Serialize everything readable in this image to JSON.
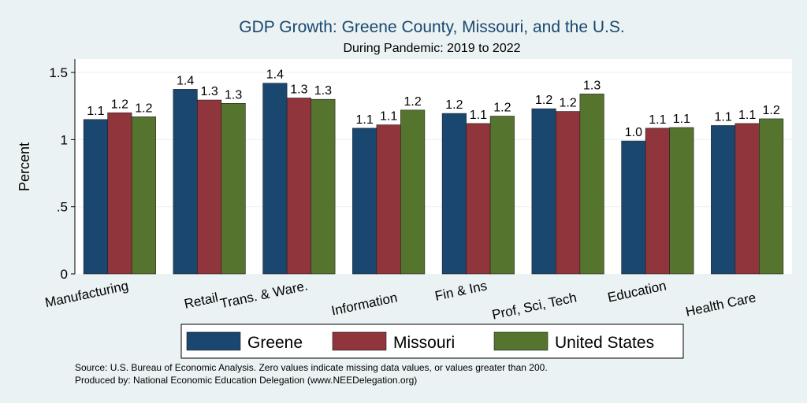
{
  "chart_data": {
    "type": "bar",
    "title": "GDP Growth: Greene County, Missouri, and the U.S.",
    "subtitle": "During Pandemic: 2019 to 2022",
    "ylabel": "Percent",
    "xlabel": "",
    "ylim": [
      0,
      1.6
    ],
    "yticks": [
      0,
      0.5,
      1,
      1.5
    ],
    "ytick_labels": [
      "0",
      ".5",
      "1",
      "1.5"
    ],
    "grid": true,
    "legend_position": "bottom",
    "categories": [
      "Manufacturing",
      "Retail",
      "Trans. & Ware.",
      "Information",
      "Fin & Ins",
      "Prof, Sci, Tech",
      "Education",
      "Health Care"
    ],
    "series": [
      {
        "name": "Greene",
        "color": "#1a476f",
        "values": [
          1.15,
          1.375,
          1.42,
          1.085,
          1.195,
          1.23,
          0.99,
          1.105
        ],
        "labels": [
          "1.1",
          "1.4",
          "1.4",
          "1.1",
          "1.2",
          "1.2",
          "1.0",
          "1.1"
        ]
      },
      {
        "name": "Missouri",
        "color": "#90353b",
        "values": [
          1.2,
          1.295,
          1.31,
          1.11,
          1.12,
          1.21,
          1.085,
          1.12
        ],
        "labels": [
          "1.2",
          "1.3",
          "1.3",
          "1.1",
          "1.1",
          "1.2",
          "1.1",
          "1.1"
        ]
      },
      {
        "name": "United States",
        "color": "#55752f",
        "values": [
          1.17,
          1.27,
          1.3,
          1.22,
          1.175,
          1.34,
          1.09,
          1.155
        ],
        "labels": [
          "1.2",
          "1.3",
          "1.3",
          "1.2",
          "1.2",
          "1.3",
          "1.1",
          "1.2"
        ]
      }
    ],
    "notes": [
      "Source: U.S. Bureau of Economic Analysis. Zero values indicate missing data values, or values greater than 200.",
      "Produced by: National Economic Education Delegation (www.NEEDelegation.org)"
    ]
  }
}
